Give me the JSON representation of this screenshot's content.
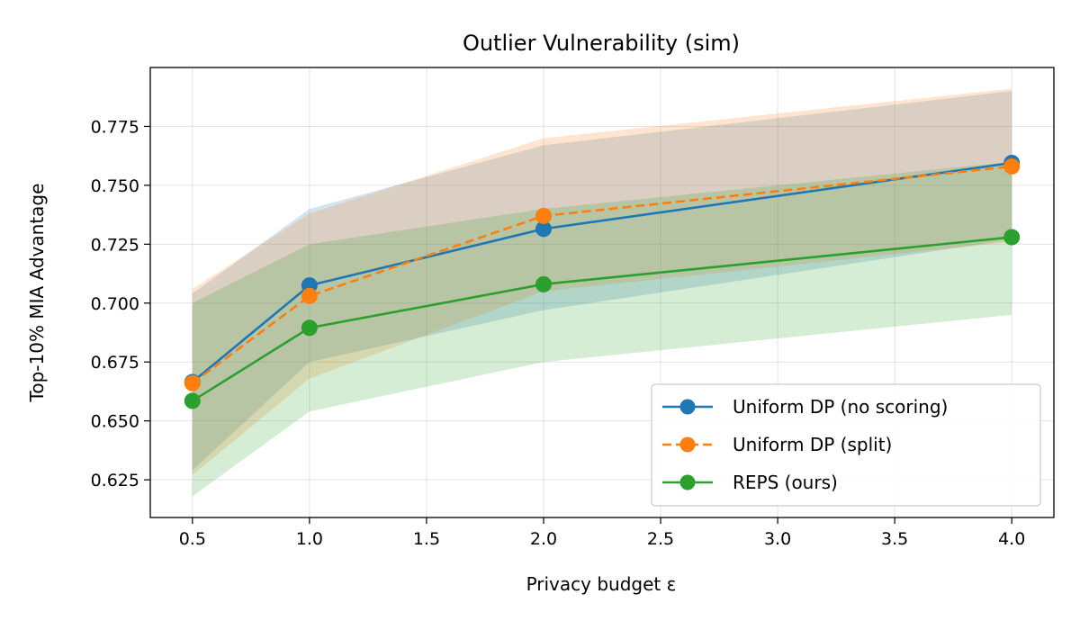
{
  "chart_data": {
    "type": "line",
    "title": "Outlier Vulnerability (sim)",
    "xlabel": "Privacy budget ε",
    "ylabel": "Top-10% MIA Advantage",
    "x": [
      0.5,
      1.0,
      2.0,
      4.0
    ],
    "xlim": [
      0.32,
      4.18
    ],
    "ylim": [
      0.609,
      0.8
    ],
    "xticks": [
      0.5,
      1.0,
      1.5,
      2.0,
      2.5,
      3.0,
      3.5,
      4.0
    ],
    "xtick_labels": [
      "0.5",
      "1.0",
      "1.5",
      "2.0",
      "2.5",
      "3.0",
      "3.5",
      "4.0"
    ],
    "yticks": [
      0.625,
      0.65,
      0.675,
      0.7,
      0.725,
      0.75,
      0.775
    ],
    "ytick_labels": [
      "0.625",
      "0.650",
      "0.675",
      "0.700",
      "0.725",
      "0.750",
      "0.775"
    ],
    "grid": true,
    "legend_position": "lower-right",
    "series": [
      {
        "name": "Uniform DP (no scoring)",
        "values": [
          0.6665,
          0.7075,
          0.7315,
          0.7595
        ],
        "lower": [
          0.629,
          0.675,
          0.697,
          0.727
        ],
        "upper": [
          0.704,
          0.74,
          0.767,
          0.79
        ],
        "color": "#1f77b4",
        "dash": "solid"
      },
      {
        "name": "Uniform DP (split)",
        "values": [
          0.666,
          0.703,
          0.737,
          0.758
        ],
        "lower": [
          0.627,
          0.668,
          0.705,
          0.726
        ],
        "upper": [
          0.706,
          0.738,
          0.77,
          0.791
        ],
        "color": "#ff7f0e",
        "dash": "dashed"
      },
      {
        "name": "REPS (ours)",
        "values": [
          0.6585,
          0.6895,
          0.708,
          0.728
        ],
        "lower": [
          0.618,
          0.654,
          0.675,
          0.695
        ],
        "upper": [
          0.7,
          0.725,
          0.74,
          0.76
        ],
        "color": "#2ca02c",
        "dash": "solid"
      }
    ]
  }
}
